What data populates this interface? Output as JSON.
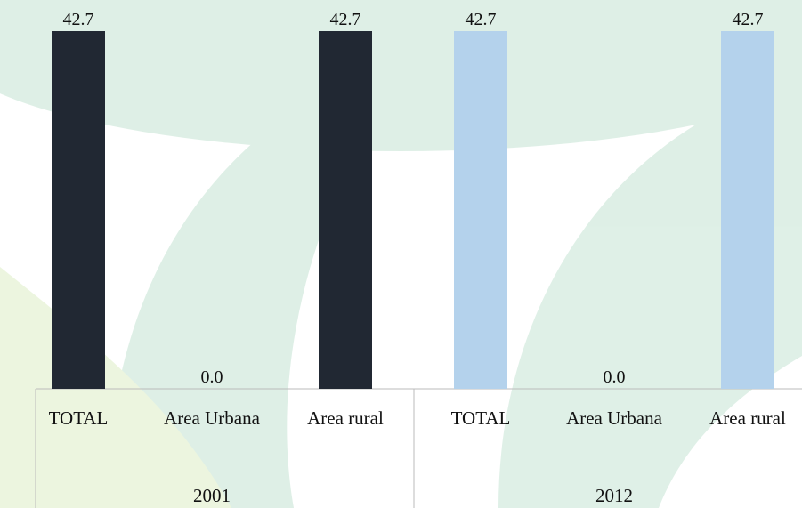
{
  "chart_data": {
    "type": "bar",
    "groups": [
      {
        "name": "2001",
        "color": "#212833",
        "categories": [
          "TOTAL",
          "Area Urbana",
          "Area rural"
        ],
        "values": [
          42.7,
          0.0,
          42.7
        ],
        "value_labels": [
          "42.7",
          "0.0",
          "42.7"
        ]
      },
      {
        "name": "2012",
        "color": "#b4d2ec",
        "categories": [
          "TOTAL",
          "Area Urbana",
          "Area rural"
        ],
        "values": [
          42.7,
          0.0,
          42.7
        ],
        "value_labels": [
          "42.7",
          "0.0",
          "42.7"
        ]
      }
    ]
  }
}
